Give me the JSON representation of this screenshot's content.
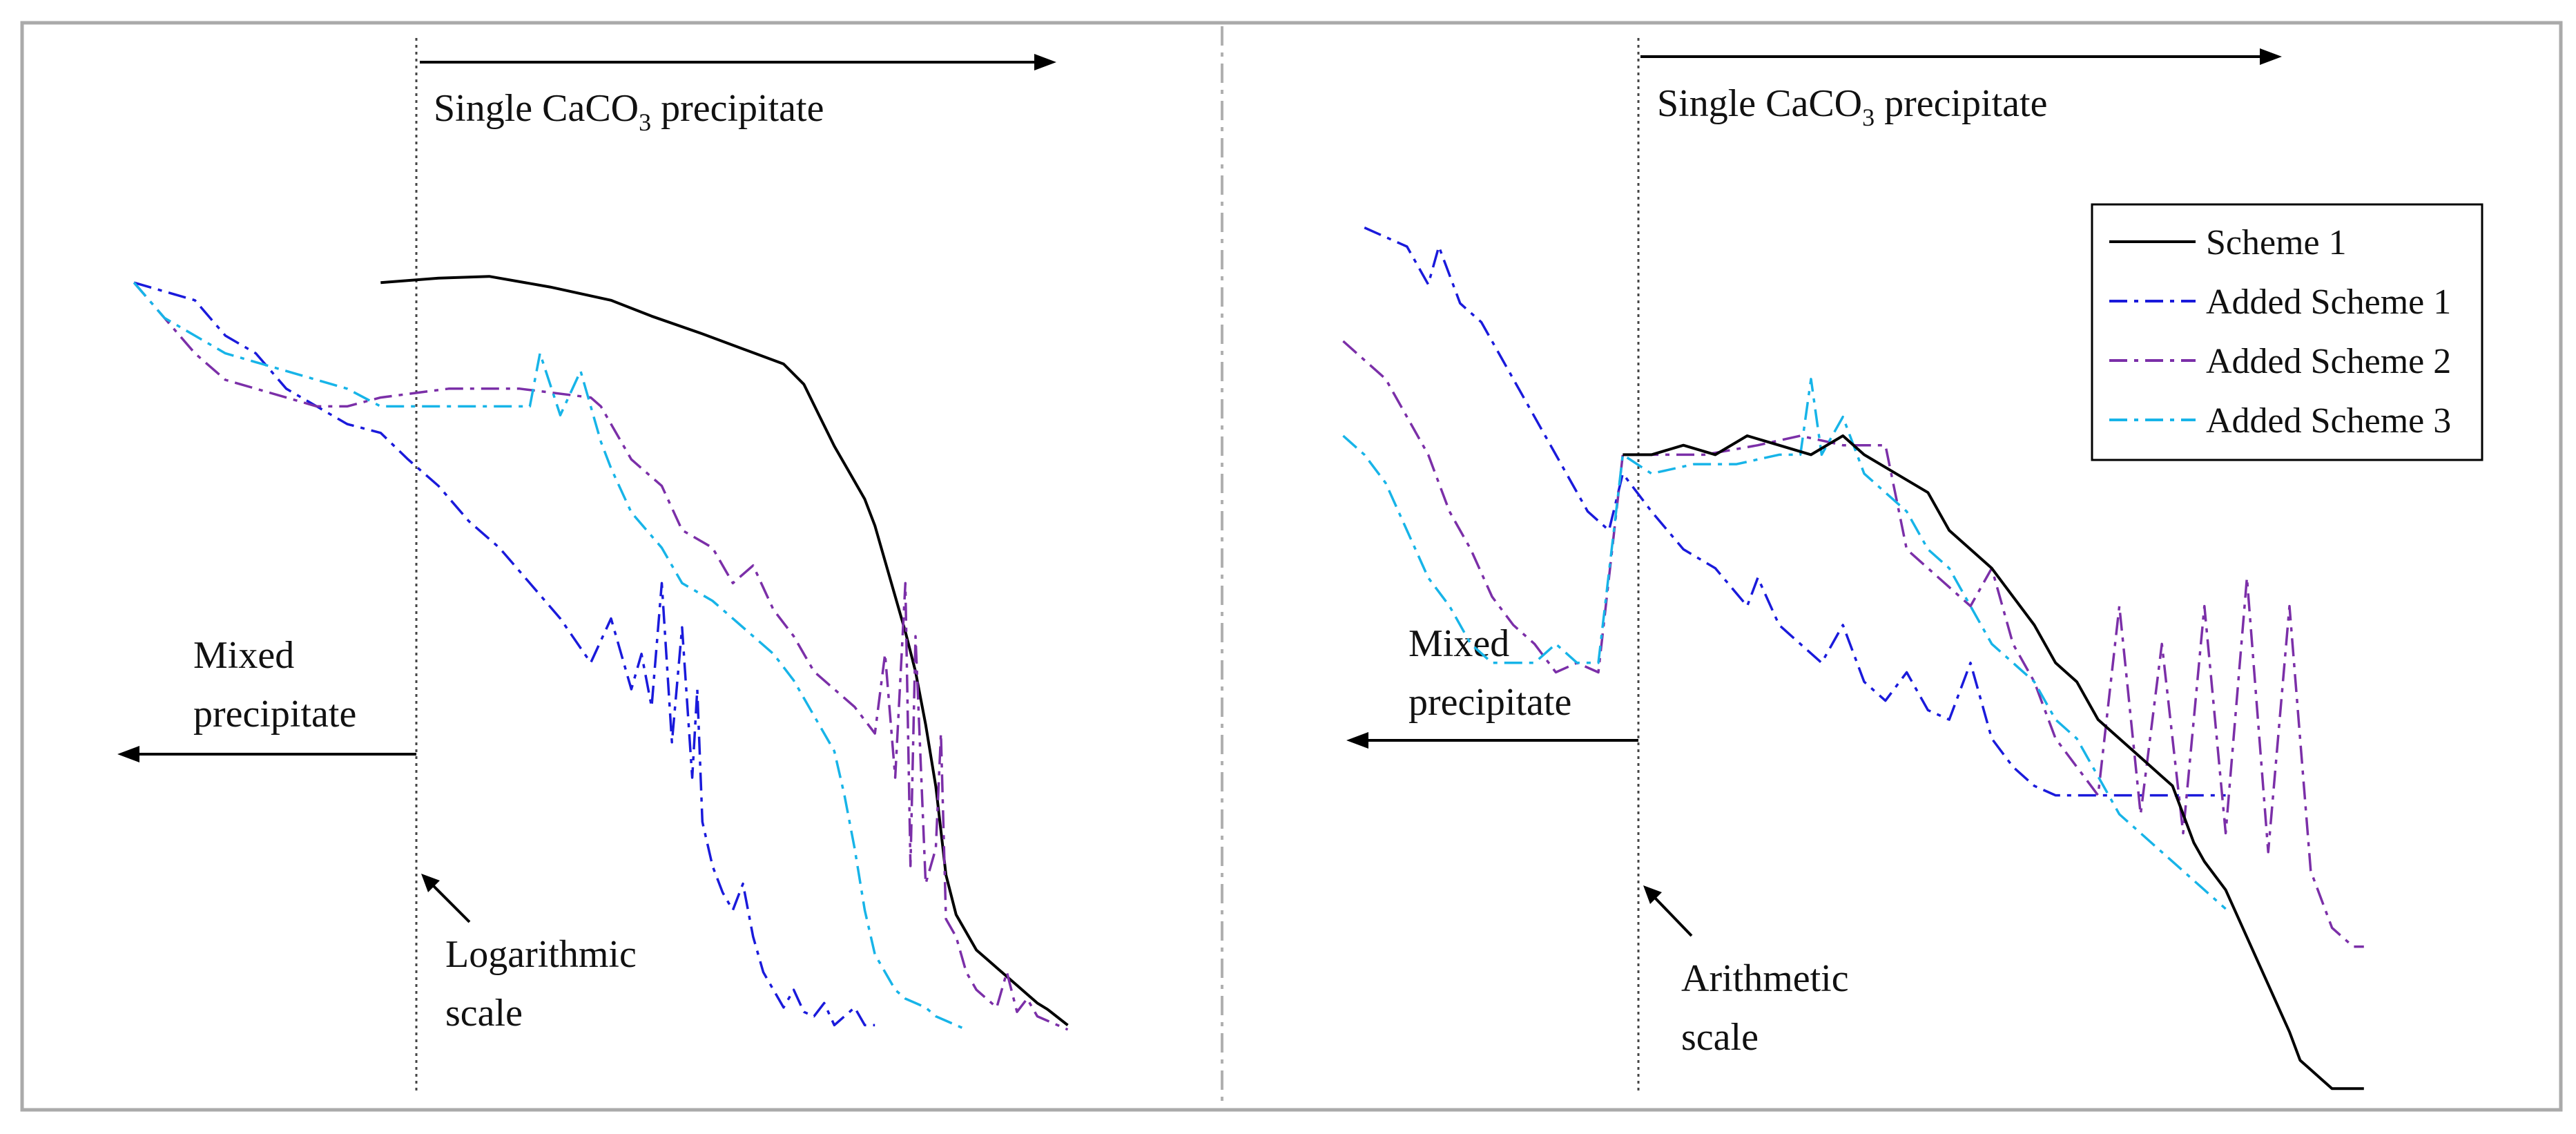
{
  "figure": {
    "left_panel": {
      "single_label_prefix": "Single CaCO",
      "single_label_sub": "3",
      "single_label_suffix": " precipitate",
      "mixed_line1": "Mixed",
      "mixed_line2": "precipitate",
      "scale_line1": "Logarithmic",
      "scale_line2": "scale"
    },
    "right_panel": {
      "single_label_prefix": "Single CaCO",
      "single_label_sub": "3",
      "single_label_suffix": " precipitate",
      "mixed_line1": "Mixed",
      "mixed_line2": "precipitate",
      "scale_line1": "Arithmetic",
      "scale_line2": "scale"
    },
    "legend": [
      "Scheme 1",
      "Added Scheme 1",
      "Added Scheme 2",
      "Added Scheme 3"
    ]
  },
  "colors": {
    "scheme1": "#000000",
    "added1": "#1a1adb",
    "added2": "#7b2fa8",
    "added3": "#17b4e8",
    "frame": "#aaaaaa",
    "divider": "#b0b0b0"
  },
  "chart_data": [
    {
      "type": "line",
      "panel": "left",
      "xscale": "log",
      "xlabel": "",
      "ylabel": "",
      "xlim": [
        0,
        100
      ],
      "ylim": [
        0,
        100
      ],
      "series": [
        {
          "name": "Scheme 1",
          "color": "#000000",
          "style": "solid",
          "x": [
            27.3,
            33,
            38,
            44,
            50,
            54,
            59,
            63,
            67,
            69,
            70.5,
            72,
            73.5,
            75,
            76,
            77,
            78,
            79,
            80,
            81,
            82,
            82.5,
            83,
            84,
            85,
            86,
            87,
            88,
            89,
            90,
            91,
            92,
            93,
            95
          ],
          "y": [
            86,
            86.5,
            86.7,
            85.5,
            84,
            82.2,
            80.2,
            78.5,
            76.8,
            74.5,
            71,
            67.5,
            64.5,
            61.5,
            58.5,
            54.5,
            50.5,
            46.5,
            42,
            36,
            29,
            24,
            19,
            14.5,
            12.5,
            10.5,
            9.5,
            8.5,
            7.5,
            6.5,
            5.5,
            4.5,
            3.8,
            2
          ]
        },
        {
          "name": "Added Scheme 1",
          "color": "#1a1adb",
          "style": "dashdot",
          "x": [
            3,
            6,
            9,
            12,
            15,
            18,
            21,
            24,
            27.3,
            30,
            33,
            36,
            39,
            42,
            45,
            48,
            50,
            52,
            53,
            54,
            55,
            56,
            57,
            58,
            58.5,
            59,
            60,
            61,
            62,
            63,
            64,
            65,
            66,
            67,
            68,
            69,
            70,
            71,
            72,
            73,
            74,
            75,
            76
          ],
          "y": [
            86,
            85,
            84,
            80,
            78,
            74,
            72,
            70,
            69,
            66,
            63,
            59,
            56,
            52,
            48,
            43,
            48,
            40,
            44,
            38,
            52,
            34,
            47,
            30,
            40,
            25,
            20,
            17,
            15,
            18,
            12,
            8,
            6,
            4,
            6,
            3.5,
            3,
            4.5,
            2,
            3,
            4,
            2,
            2
          ]
        },
        {
          "name": "Added Scheme 2",
          "color": "#7b2fa8",
          "style": "dashdot",
          "x": [
            3,
            6,
            9,
            12,
            15,
            18,
            21,
            24,
            27.3,
            34,
            41,
            48,
            49,
            52,
            55,
            57,
            60,
            62,
            64,
            66,
            68,
            70,
            72,
            74,
            76,
            77,
            78,
            79,
            79.5,
            80,
            81,
            82,
            82.5,
            83,
            84,
            85,
            86,
            87,
            88,
            89,
            90,
            91,
            92,
            93,
            94,
            95
          ],
          "y": [
            86,
            82,
            78,
            75,
            74,
            73,
            72,
            72,
            73,
            74,
            74,
            73,
            72,
            66,
            63,
            58,
            56,
            52,
            54,
            49,
            46,
            42,
            40,
            38,
            35,
            44,
            30,
            52,
            20,
            46,
            18,
            22,
            35,
            14,
            12,
            8,
            6,
            5,
            4,
            8,
            3.5,
            5,
            3,
            2.5,
            2,
            1.5
          ]
        },
        {
          "name": "Added Scheme 3",
          "color": "#17b4e8",
          "style": "dashdot",
          "x": [
            3,
            6,
            9,
            12,
            15,
            18,
            21,
            24,
            27.3,
            35,
            42,
            43,
            45,
            47,
            49,
            50,
            52,
            55,
            57,
            60,
            62,
            64,
            66,
            68,
            70,
            72,
            73,
            74,
            75,
            76,
            77,
            78,
            79,
            80,
            81,
            82,
            83,
            84,
            85
          ],
          "y": [
            86,
            82,
            80,
            78,
            77,
            76,
            75,
            74,
            72,
            72,
            72,
            78,
            71,
            76,
            68,
            65,
            60,
            56,
            52,
            50,
            48,
            46,
            44,
            41,
            37,
            33,
            28,
            22,
            15,
            10,
            8,
            6,
            5,
            4.5,
            4,
            3,
            2.5,
            2,
            1.5
          ]
        }
      ]
    },
    {
      "type": "line",
      "panel": "right",
      "xscale": "linear",
      "xlabel": "",
      "ylabel": "",
      "xlim": [
        0,
        100
      ],
      "ylim": [
        0,
        100
      ],
      "series": [
        {
          "name": "Scheme 1",
          "color": "#000000",
          "style": "solid",
          "x": [
            27.3,
            30,
            33,
            36,
            39,
            42,
            45,
            48,
            50,
            53,
            56,
            58,
            60,
            62,
            64,
            66,
            68,
            70,
            72,
            74,
            76,
            78,
            79,
            80,
            81,
            82,
            84,
            86,
            88,
            90,
            91,
            92,
            93,
            94,
            95,
            96,
            97
          ],
          "y": [
            68,
            68,
            69,
            68,
            70,
            69,
            68,
            70,
            68,
            66,
            64,
            60,
            58,
            56,
            53,
            50,
            46,
            44,
            40,
            38,
            36,
            34,
            33,
            30,
            27,
            25,
            22,
            17,
            12,
            7,
            4,
            3,
            2,
            1,
            1,
            1,
            1
          ]
        },
        {
          "name": "Added Scheme 1",
          "color": "#1a1adb",
          "style": "dashdot",
          "x": [
            3,
            5,
            7,
            9,
            10,
            12,
            14,
            16,
            18,
            20,
            22,
            24,
            26,
            27.3,
            30,
            33,
            36,
            39,
            40,
            42,
            44,
            46,
            48,
            50,
            52,
            54,
            56,
            58,
            60,
            62,
            64,
            66,
            68,
            70,
            72,
            74,
            76,
            78,
            80,
            82,
            84
          ],
          "y": [
            92,
            91,
            90,
            86,
            90,
            84,
            82,
            78,
            74,
            70,
            66,
            62,
            60,
            66,
            62,
            58,
            56,
            52,
            55,
            50,
            48,
            46,
            50,
            44,
            42,
            45,
            41,
            40,
            46,
            38,
            35,
            33,
            32,
            32,
            32,
            32,
            32,
            32,
            32,
            32,
            32
          ]
        },
        {
          "name": "Added Scheme 2",
          "color": "#7b2fa8",
          "style": "dashdot",
          "x": [
            1,
            3,
            5,
            7,
            9,
            11,
            13,
            15,
            17,
            19,
            21,
            23,
            25,
            27.3,
            35,
            40,
            44,
            48,
            52,
            54,
            56,
            58,
            60,
            62,
            64,
            66,
            68,
            70,
            72,
            74,
            76,
            78,
            80,
            82,
            84,
            86,
            88,
            90,
            92,
            94,
            96,
            97
          ],
          "y": [
            80,
            78,
            76,
            72,
            68,
            62,
            58,
            53,
            50,
            48,
            45,
            46,
            45,
            68,
            68,
            69,
            70,
            69,
            69,
            58,
            56,
            54,
            52,
            56,
            48,
            44,
            38,
            35,
            32,
            52,
            30,
            48,
            28,
            52,
            28,
            55,
            26,
            52,
            24,
            18,
            16,
            16
          ]
        },
        {
          "name": "Added Scheme 3",
          "color": "#17b4e8",
          "style": "dashdot",
          "x": [
            1,
            3,
            5,
            7,
            9,
            11,
            13,
            15,
            17,
            19,
            21,
            23,
            25,
            27.3,
            30,
            34,
            38,
            42,
            44,
            45,
            46,
            48,
            50,
            52,
            54,
            56,
            58,
            60,
            62,
            64,
            66,
            68,
            70,
            72,
            74,
            76,
            78,
            80,
            82,
            84
          ],
          "y": [
            70,
            68,
            65,
            60,
            55,
            52,
            48,
            46,
            46,
            46,
            48,
            46,
            46,
            68,
            66,
            67,
            67,
            68,
            68,
            76,
            68,
            72,
            66,
            64,
            62,
            58,
            56,
            52,
            48,
            46,
            44,
            40,
            38,
            34,
            30,
            28,
            26,
            24,
            22,
            20
          ]
        }
      ]
    }
  ]
}
